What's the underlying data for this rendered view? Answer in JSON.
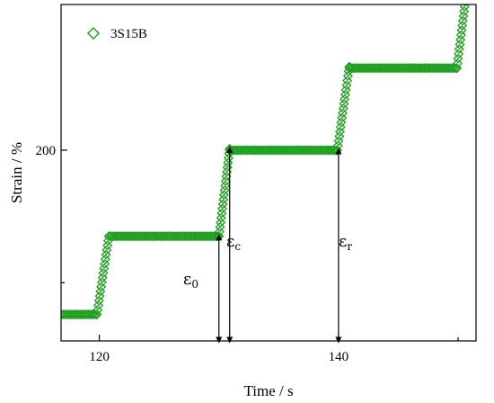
{
  "chart_data": {
    "type": "scatter",
    "title": "",
    "xlabel": "Time / s",
    "ylabel": "Strain / %",
    "xlim": [
      116.8,
      151.5
    ],
    "ylim": [
      128,
      255
    ],
    "xticks_labeled": [
      120,
      140
    ],
    "xticks_minor": [
      130,
      150
    ],
    "yticks_labeled": [
      200
    ],
    "yticks_minor": [
      150
    ],
    "grid": false,
    "legend_position": "top-left",
    "marker_color": "#1e9e1e",
    "marker": "open-diamond",
    "series": [
      {
        "name": "3S15B",
        "segments": [
          {
            "kind": "flat",
            "x0": 116.8,
            "x1": 119.8,
            "y": 138
          },
          {
            "kind": "ramp",
            "x0": 119.8,
            "x1": 120.8,
            "y0": 138,
            "y1": 167.5
          },
          {
            "kind": "flat",
            "x0": 120.8,
            "x1": 130.0,
            "y": 167.5
          },
          {
            "kind": "ramp",
            "x0": 130.0,
            "x1": 130.9,
            "y0": 167.5,
            "y1": 200.5
          },
          {
            "kind": "flat",
            "x0": 130.9,
            "x1": 139.9,
            "y": 200.0
          },
          {
            "kind": "ramp",
            "x0": 139.9,
            "x1": 140.9,
            "y0": 200.0,
            "y1": 231.5
          },
          {
            "kind": "flat",
            "x0": 140.9,
            "x1": 149.9,
            "y": 231.0
          },
          {
            "kind": "ramp",
            "x0": 149.9,
            "x1": 150.6,
            "y0": 231.0,
            "y1": 256
          }
        ]
      }
    ],
    "annotations": [
      {
        "name": "epsilon-0",
        "symbol": "ε",
        "subscript": "0",
        "x": 130.0,
        "y_bottom": 128,
        "y_top": 167.5
      },
      {
        "name": "epsilon-c",
        "symbol": "ε",
        "subscript": "c",
        "x": 130.9,
        "y_bottom": 128,
        "y_top": 200.5
      },
      {
        "name": "epsilon-r",
        "symbol": "ε",
        "subscript": "r",
        "x": 140.0,
        "y_bottom": 128,
        "y_top": 200.0
      }
    ]
  }
}
